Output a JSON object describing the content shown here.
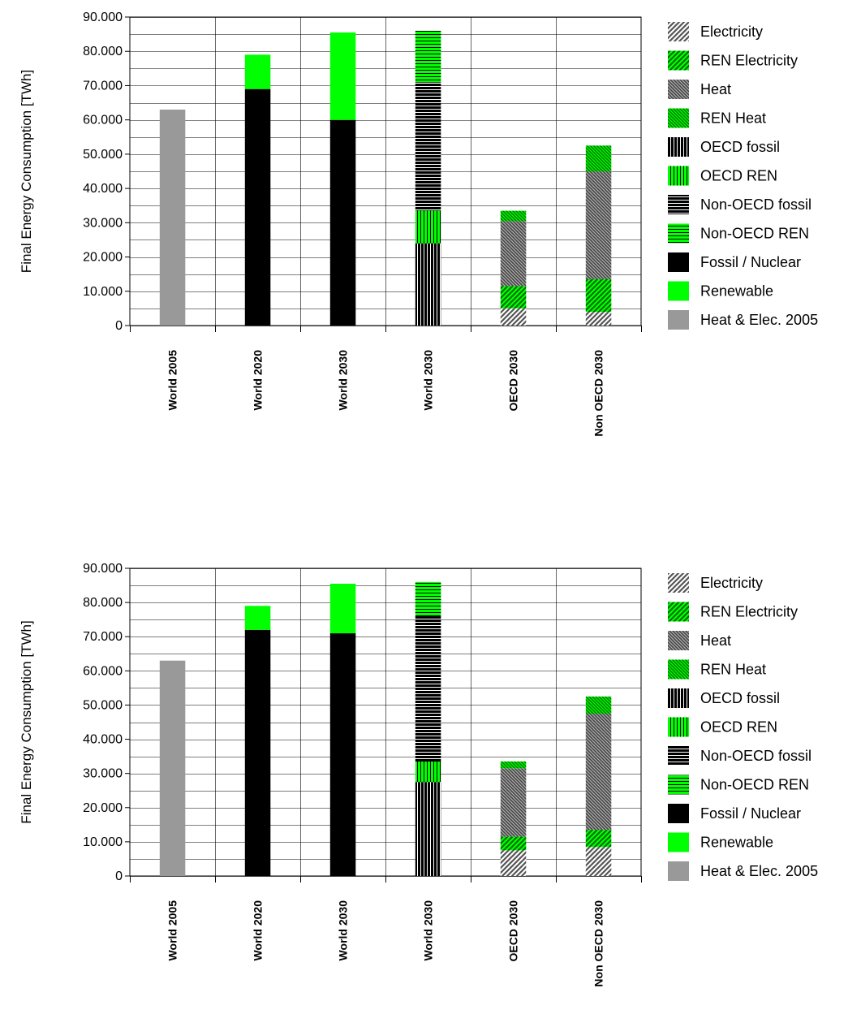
{
  "chart_data": [
    {
      "type": "bar",
      "stacked": true,
      "ylabel": "Final Energy Consumption [TWh]",
      "ylim": [
        0,
        90000
      ],
      "yticks": [
        "0",
        "10.000",
        "20.000",
        "30.000",
        "40.000",
        "50.000",
        "60.000",
        "70.000",
        "80.000",
        "90.000"
      ],
      "grid": true,
      "legend_position": "right",
      "categories": [
        "World 2005",
        "World 2020",
        "World 2030",
        "World 2030",
        "OECD 2030",
        "Non OECD 2030"
      ],
      "series": [
        {
          "name": "Electricity",
          "values": [
            0,
            0,
            0,
            0,
            5000,
            4000
          ]
        },
        {
          "name": "REN Electricity",
          "values": [
            0,
            0,
            0,
            0,
            6500,
            9500
          ]
        },
        {
          "name": "Heat",
          "values": [
            0,
            0,
            0,
            0,
            19000,
            31500
          ]
        },
        {
          "name": "REN Heat",
          "values": [
            0,
            0,
            0,
            0,
            3000,
            7500
          ]
        },
        {
          "name": "OECD fossil",
          "values": [
            0,
            0,
            0,
            24000,
            0,
            0
          ]
        },
        {
          "name": "OECD REN",
          "values": [
            0,
            0,
            0,
            9500,
            0,
            0
          ]
        },
        {
          "name": "Non-OECD fossil",
          "values": [
            0,
            0,
            0,
            37500,
            0,
            0
          ]
        },
        {
          "name": "Non-OECD REN",
          "values": [
            0,
            0,
            0,
            15000,
            0,
            0
          ]
        },
        {
          "name": "Fossil / Nuclear",
          "values": [
            0,
            69000,
            60000,
            0,
            0,
            0
          ]
        },
        {
          "name": "Renewable",
          "values": [
            0,
            10000,
            25500,
            0,
            0,
            0
          ]
        },
        {
          "name": "Heat & Elec. 2005",
          "values": [
            63000,
            0,
            0,
            0,
            0,
            0
          ]
        }
      ]
    },
    {
      "type": "bar",
      "stacked": true,
      "ylabel": "Final Energy Consumption [TWh]",
      "ylim": [
        0,
        90000
      ],
      "yticks": [
        "0",
        "10.000",
        "20.000",
        "30.000",
        "40.000",
        "50.000",
        "60.000",
        "70.000",
        "80.000",
        "90.000"
      ],
      "grid": true,
      "legend_position": "right",
      "categories": [
        "World 2005",
        "World 2020",
        "World 2030",
        "World 2030",
        "OECD 2030",
        "Non OECD 2030"
      ],
      "series": [
        {
          "name": "Electricity",
          "values": [
            0,
            0,
            0,
            0,
            7500,
            8500
          ]
        },
        {
          "name": "REN Electricity",
          "values": [
            0,
            0,
            0,
            0,
            4000,
            5000
          ]
        },
        {
          "name": "Heat",
          "values": [
            0,
            0,
            0,
            0,
            20000,
            34000
          ]
        },
        {
          "name": "REN Heat",
          "values": [
            0,
            0,
            0,
            0,
            2000,
            5000
          ]
        },
        {
          "name": "OECD fossil",
          "values": [
            0,
            0,
            0,
            27500,
            0,
            0
          ]
        },
        {
          "name": "OECD REN",
          "values": [
            0,
            0,
            0,
            6000,
            0,
            0
          ]
        },
        {
          "name": "Non-OECD fossil",
          "values": [
            0,
            0,
            0,
            42500,
            0,
            0
          ]
        },
        {
          "name": "Non-OECD REN",
          "values": [
            0,
            0,
            0,
            10000,
            0,
            0
          ]
        },
        {
          "name": "Fossil / Nuclear",
          "values": [
            0,
            72000,
            71000,
            0,
            0,
            0
          ]
        },
        {
          "name": "Renewable",
          "values": [
            0,
            7000,
            14500,
            0,
            0,
            0
          ]
        },
        {
          "name": "Heat & Elec. 2005",
          "values": [
            63000,
            0,
            0,
            0,
            0,
            0
          ]
        }
      ]
    }
  ],
  "series_style": {
    "Electricity": {
      "fill": "gray-diagonal",
      "color": "#808080"
    },
    "REN Electricity": {
      "fill": "green-diagonal",
      "color": "#00ff00"
    },
    "Heat": {
      "fill": "gray-diagonal-dense",
      "color": "#808080"
    },
    "REN Heat": {
      "fill": "green-diagonal-dense",
      "color": "#00ff00"
    },
    "OECD fossil": {
      "fill": "black-vertical",
      "color": "#000000"
    },
    "OECD REN": {
      "fill": "green-vertical",
      "color": "#00ff00"
    },
    "Non-OECD fossil": {
      "fill": "black-horizontal",
      "color": "#000000"
    },
    "Non-OECD REN": {
      "fill": "green-horizontal",
      "color": "#00ff00"
    },
    "Fossil / Nuclear": {
      "fill": "solid",
      "color": "#000000"
    },
    "Renewable": {
      "fill": "solid",
      "color": "#00ff00"
    },
    "Heat & Elec. 2005": {
      "fill": "solid",
      "color": "#999999"
    }
  }
}
